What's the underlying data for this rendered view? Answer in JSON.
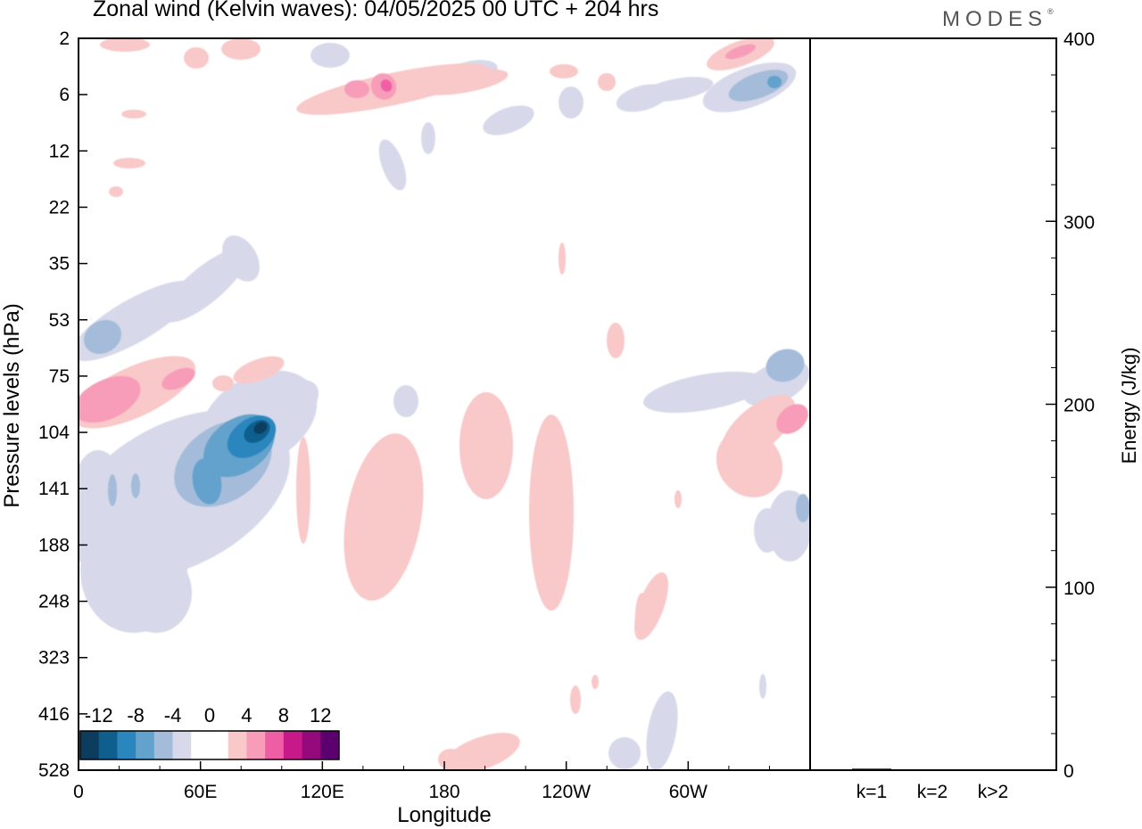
{
  "chart_data": [
    {
      "type": "heatmap",
      "title": "Zonal wind (Kelvin waves):  04/05/2025  00 UTC  + 204 hrs",
      "xlabel": "Longitude",
      "ylabel": "Pressure levels (hPa)",
      "x_ticks": [
        "0",
        "60E",
        "120E",
        "180",
        "120W",
        "60W"
      ],
      "x_tick_values": [
        0,
        60,
        120,
        180,
        240,
        300
      ],
      "xlim": [
        0,
        360
      ],
      "y_ticks": [
        "2",
        "6",
        "12",
        "22",
        "35",
        "53",
        "75",
        "104",
        "141",
        "188",
        "248",
        "323",
        "416",
        "528"
      ],
      "y_scale": "categorical levels, top = 2 hPa, bottom = 528 hPa",
      "colorbar": {
        "labels": [
          "-12",
          "-8",
          "-4",
          "0",
          "4",
          "8",
          "12"
        ],
        "colors": [
          "#0c3d5e",
          "#0f5f8e",
          "#2a86bd",
          "#63a2cc",
          "#a4bcd9",
          "#d7d9ea",
          "#ffffff",
          "#ffffff",
          "#f9c8c8",
          "#f79db9",
          "#ee5ea5",
          "#c8198a",
          "#940a7c",
          "#5c0070"
        ]
      },
      "features": [
        {
          "sign": "negative",
          "peak": -12,
          "center_lon": 83,
          "center_level": "104",
          "desc": "strongest easterly core"
        },
        {
          "sign": "positive",
          "peak": 8,
          "center_lon": 8,
          "center_level": "104",
          "desc": "westerly band tilting up-east"
        },
        {
          "sign": "negative",
          "peak": -6,
          "center_lon": 8,
          "center_level": "53"
        },
        {
          "sign": "positive",
          "peak": 8,
          "center_lon": 150,
          "center_level": "6"
        },
        {
          "sign": "negative",
          "peak": -8,
          "center_lon": 340,
          "center_level": "6"
        },
        {
          "sign": "positive",
          "peak": 8,
          "center_lon": 345,
          "center_level": "104"
        }
      ]
    },
    {
      "type": "bar",
      "ylabel": "Energy (J/kg)",
      "categories": [
        "k=1",
        "k=2",
        "k>2"
      ],
      "values": [
        0.8,
        0.3,
        0.3
      ],
      "ylim": [
        0,
        400
      ],
      "y_ticks": [
        "0",
        "100",
        "200",
        "300",
        "400"
      ]
    }
  ],
  "logo": "MODES",
  "logo_mark": "®"
}
